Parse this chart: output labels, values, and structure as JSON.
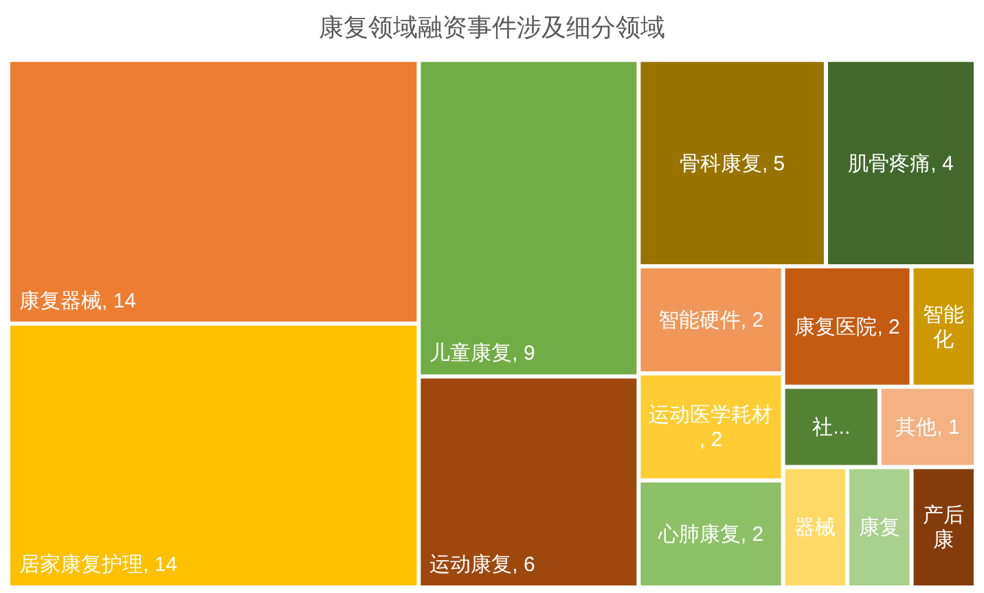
{
  "chart_data": {
    "type": "other",
    "title": "康复领域融资事件涉及细分领域",
    "categories": [
      "康复器械",
      "居家康复护理",
      "儿童康复",
      "运动康复",
      "骨科康复",
      "肌骨疼痛",
      "智能硬件",
      "运动医学耗材",
      "心肺康复",
      "康复医院",
      "智能化",
      "社...",
      "其他",
      "器械",
      "康复",
      "产后康"
    ],
    "values": [
      14,
      14,
      9,
      6,
      5,
      4,
      2,
      2,
      2,
      2,
      null,
      null,
      1,
      null,
      null,
      null
    ],
    "value_labels": [
      ", 14",
      ", 14",
      ", 9",
      ", 6",
      ", 5",
      ", 4",
      ", 2",
      ", 2",
      ", 2",
      ", 2",
      null,
      null,
      ", 1",
      null,
      null,
      null
    ],
    "colors": [
      "#ed7d31",
      "#ffc000",
      "#70ad47",
      "#9e480e",
      "#997300",
      "#43682b",
      "#f1975a",
      "#ffcd33",
      "#8cc168",
      "#c55a11",
      "#cc9a00",
      "#548235",
      "#f4b183",
      "#ffd966",
      "#a9d18e",
      "#843c0c"
    ]
  }
}
